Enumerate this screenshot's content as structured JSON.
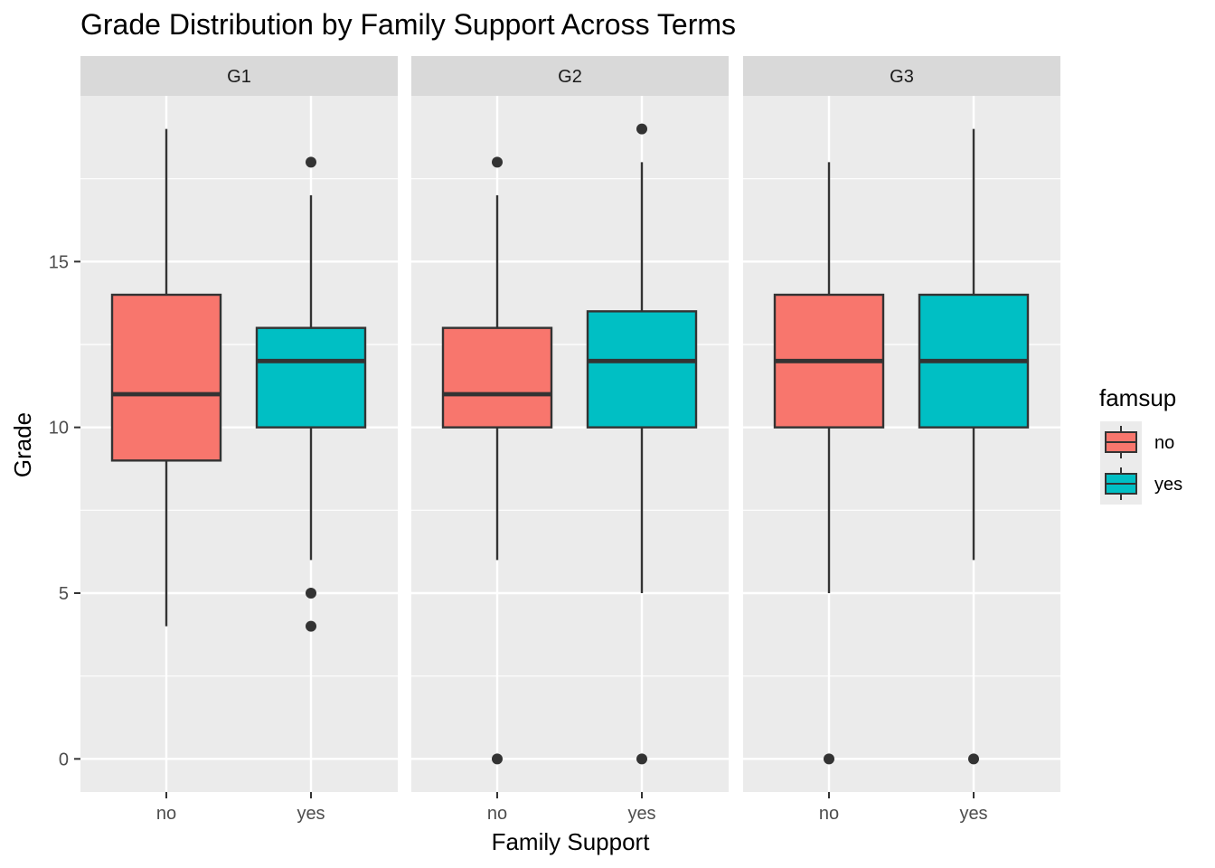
{
  "chart_data": {
    "type": "boxplot",
    "title": "Grade Distribution by Family Support Across Terms",
    "xlabel": "Family Support",
    "ylabel": "Grade",
    "ylim": [
      -1.0,
      20.0
    ],
    "yticks": [
      0,
      5,
      10,
      15
    ],
    "grid": true,
    "categories": [
      "no",
      "yes"
    ],
    "facets": [
      "G1",
      "G2",
      "G3"
    ],
    "legend": {
      "title": "famsup",
      "position": "right",
      "entries": [
        {
          "label": "no",
          "color": "#F8766D"
        },
        {
          "label": "yes",
          "color": "#00BFC4"
        }
      ]
    },
    "panels": [
      {
        "facet": "G1",
        "boxes": [
          {
            "category": "no",
            "min": 4,
            "q1": 9,
            "median": 11,
            "q3": 14,
            "max": 19,
            "outliers": []
          },
          {
            "category": "yes",
            "min": 6,
            "q1": 10,
            "median": 12,
            "q3": 13,
            "max": 17,
            "outliers": [
              18,
              5,
              4
            ]
          }
        ]
      },
      {
        "facet": "G2",
        "boxes": [
          {
            "category": "no",
            "min": 6,
            "q1": 10,
            "median": 11,
            "q3": 13,
            "max": 17,
            "outliers": [
              18,
              0
            ]
          },
          {
            "category": "yes",
            "min": 5,
            "q1": 10,
            "median": 12,
            "q3": 13.5,
            "max": 18,
            "outliers": [
              19,
              0
            ]
          }
        ]
      },
      {
        "facet": "G3",
        "boxes": [
          {
            "category": "no",
            "min": 5,
            "q1": 10,
            "median": 12,
            "q3": 14,
            "max": 18,
            "outliers": [
              0
            ]
          },
          {
            "category": "yes",
            "min": 6,
            "q1": 10,
            "median": 12,
            "q3": 14,
            "max": 19,
            "outliers": [
              0
            ]
          }
        ]
      }
    ],
    "colors": {
      "panel_bg": "#EBEBEB",
      "strip_bg": "#D9D9D9",
      "grid": "#FFFFFF",
      "box_line": "#333333"
    }
  }
}
